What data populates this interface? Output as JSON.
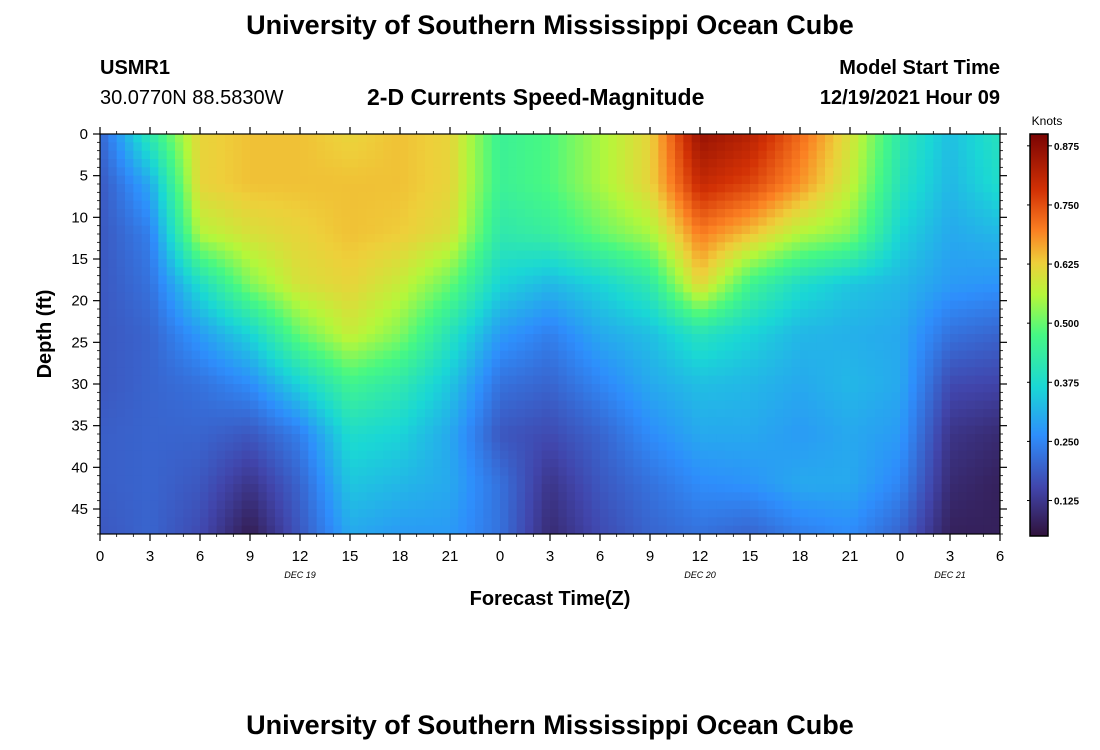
{
  "header": {
    "title": "University of Southern Mississippi Ocean Cube",
    "station_id": "USMR1",
    "station_coords": "30.0770N  88.5830W",
    "plot_title": "2-D Currents Speed-Magnitude",
    "model_start_label": "Model Start Time",
    "model_start_value": "12/19/2021 Hour 09"
  },
  "footer": {
    "title": "University of Southern Mississippi Ocean Cube"
  },
  "chart_data": {
    "type": "heatmap",
    "title": "2-D Currents Speed-Magnitude",
    "xlabel": "Forecast Time(Z)",
    "ylabel": "Depth (ft)",
    "colorbar_label": "Knots",
    "xlim": [
      0,
      54
    ],
    "ylim": [
      0,
      48
    ],
    "y_inverted": true,
    "x_ticks": [
      0,
      3,
      6,
      9,
      12,
      15,
      18,
      21,
      24,
      27,
      30,
      33,
      36,
      39,
      42,
      45,
      48,
      51,
      54
    ],
    "x_tick_labels": [
      "0",
      "3",
      "6",
      "9",
      "12",
      "15",
      "18",
      "21",
      "0",
      "3",
      "6",
      "9",
      "12",
      "15",
      "18",
      "21",
      "0",
      "3",
      "6"
    ],
    "y_ticks": [
      0,
      5,
      10,
      15,
      20,
      25,
      30,
      35,
      40,
      45
    ],
    "y_tick_labels": [
      "0",
      "5",
      "10",
      "15",
      "20",
      "25",
      "30",
      "35",
      "40",
      "45"
    ],
    "date_labels": [
      {
        "x": 12,
        "text": "DEC 19"
      },
      {
        "x": 36,
        "text": "DEC 20"
      },
      {
        "x": 51,
        "text": "DEC 21"
      }
    ],
    "colorbar": {
      "min": 0.05,
      "max": 0.9,
      "ticks": [
        0.125,
        0.25,
        0.375,
        0.5,
        0.625,
        0.75,
        0.875
      ],
      "tick_labels": [
        "0.125",
        "0.250",
        "0.375",
        "0.500",
        "0.625",
        "0.750",
        "0.875"
      ]
    },
    "grid_depths": [
      0,
      6,
      12,
      18,
      24,
      30,
      36,
      42,
      48
    ],
    "grid_times": [
      0,
      3,
      6,
      9,
      12,
      15,
      18,
      21,
      24,
      27,
      30,
      33,
      36,
      39,
      42,
      45,
      48,
      51,
      54
    ],
    "values": [
      [
        0.2,
        0.42,
        0.62,
        0.64,
        0.64,
        0.62,
        0.64,
        0.62,
        0.45,
        0.48,
        0.55,
        0.62,
        0.86,
        0.82,
        0.72,
        0.6,
        0.42,
        0.33,
        0.4
      ],
      [
        0.18,
        0.3,
        0.62,
        0.64,
        0.64,
        0.64,
        0.64,
        0.62,
        0.45,
        0.48,
        0.55,
        0.62,
        0.8,
        0.76,
        0.68,
        0.58,
        0.4,
        0.32,
        0.38
      ],
      [
        0.18,
        0.24,
        0.56,
        0.6,
        0.62,
        0.64,
        0.63,
        0.6,
        0.42,
        0.44,
        0.5,
        0.55,
        0.7,
        0.64,
        0.56,
        0.52,
        0.36,
        0.3,
        0.32
      ],
      [
        0.18,
        0.22,
        0.38,
        0.52,
        0.6,
        0.62,
        0.58,
        0.5,
        0.36,
        0.32,
        0.36,
        0.42,
        0.62,
        0.46,
        0.38,
        0.34,
        0.32,
        0.28,
        0.27
      ],
      [
        0.18,
        0.2,
        0.28,
        0.36,
        0.5,
        0.58,
        0.52,
        0.4,
        0.28,
        0.24,
        0.3,
        0.33,
        0.4,
        0.36,
        0.32,
        0.31,
        0.3,
        0.22,
        0.2
      ],
      [
        0.18,
        0.2,
        0.22,
        0.26,
        0.36,
        0.46,
        0.42,
        0.34,
        0.22,
        0.2,
        0.25,
        0.3,
        0.33,
        0.32,
        0.3,
        0.32,
        0.3,
        0.16,
        0.15
      ],
      [
        0.19,
        0.2,
        0.2,
        0.18,
        0.24,
        0.38,
        0.36,
        0.3,
        0.18,
        0.16,
        0.2,
        0.26,
        0.3,
        0.3,
        0.28,
        0.3,
        0.28,
        0.12,
        0.1
      ],
      [
        0.19,
        0.2,
        0.18,
        0.12,
        0.2,
        0.34,
        0.32,
        0.3,
        0.22,
        0.12,
        0.18,
        0.22,
        0.26,
        0.27,
        0.3,
        0.3,
        0.25,
        0.1,
        0.08
      ],
      [
        0.18,
        0.2,
        0.16,
        0.07,
        0.18,
        0.3,
        0.28,
        0.28,
        0.22,
        0.1,
        0.16,
        0.2,
        0.22,
        0.2,
        0.24,
        0.26,
        0.2,
        0.08,
        0.08
      ]
    ]
  }
}
